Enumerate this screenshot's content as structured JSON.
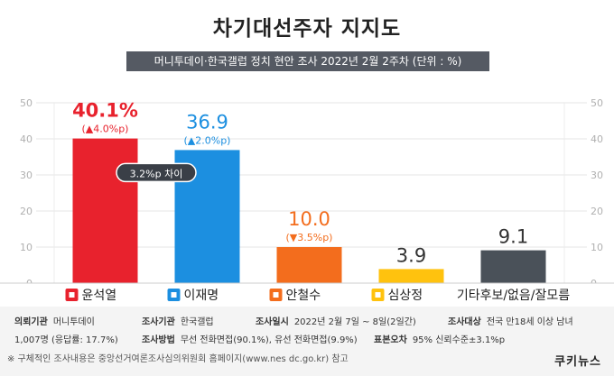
{
  "title": "차기대선주자 지지도",
  "subtitle": "머니투데이·한국갤럽 정치 현안 조사 2022년 2월 2주차 (단위 : %)",
  "chart_data": {
    "type": "bar",
    "categories": [
      "윤석열",
      "이재명",
      "안철수",
      "심상정",
      "기타후보/없음/잘모름"
    ],
    "values": [
      40.1,
      36.9,
      10.0,
      3.9,
      9.1
    ],
    "value_labels": [
      "40.1%",
      "36.9",
      "10.0",
      "3.9",
      "9.1"
    ],
    "change_labels": [
      "(▲4.0%p)",
      "(▲2.0%p)",
      "(▼3.5%p)",
      "",
      ""
    ],
    "bar_colors": [
      "#e8222d",
      "#1c8fe0",
      "#f36d1d",
      "#ffc20e",
      "#4a5159"
    ],
    "value_label_colors": [
      "#e8222d",
      "#1c8fe0",
      "#f36d1d",
      "#333333",
      "#333333"
    ],
    "party_icon_colors": [
      "#e8222d",
      "#1c8fe0",
      "#f36d1d",
      "#ffc20e",
      ""
    ],
    "y_ticks": [
      0,
      10,
      20,
      30,
      40,
      50
    ],
    "ylim": [
      0,
      50
    ],
    "gap_annotation": "3.2%p 차이",
    "grid": true
  },
  "footer": {
    "client_label": "의뢰기관",
    "client": "머니투데이",
    "agency_label": "조사기관",
    "agency": "한국갤럽",
    "date_label": "조사일시",
    "date": "2022년 2월 7일 ~ 8일(2일간)",
    "target_label": "조사대상",
    "target": "전국  만18세 이상 남녀",
    "sample": "1,007명 (응답률: 17.7%)",
    "method_label": "조사방법",
    "method": "무선 전화면접(90.1%), 유선 전화면접(9.9%)",
    "error_label": "표본오차",
    "error": "95% 신뢰수준±3.1%p",
    "note": "※ 구체적인 조사내용은 중앙선거여론조사심의위원회 홈페이지(www.nes dc.go.kr) 참고",
    "brand": "쿠키뉴스"
  }
}
